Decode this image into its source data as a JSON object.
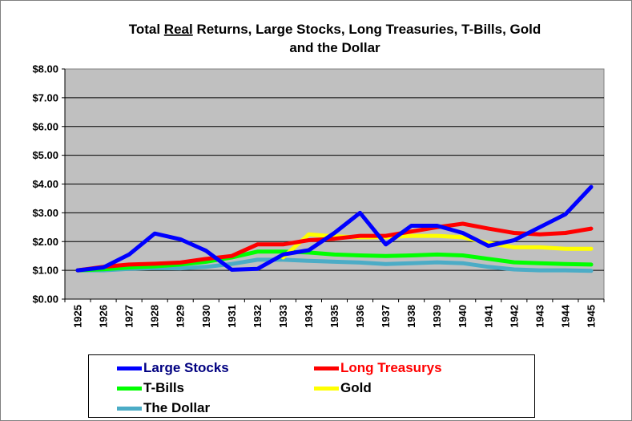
{
  "chart_data": {
    "type": "line",
    "title_parts": [
      "Total ",
      "Real",
      " Returns, Large Stocks, Long Treasuries, T-Bills, Gold"
    ],
    "title_line2": "and the Dollar",
    "xlabel": "",
    "ylabel": "",
    "x": [
      "1925",
      "1926",
      "1927",
      "1928",
      "1929",
      "1930",
      "1931",
      "1932",
      "1933",
      "1934",
      "1935",
      "1936",
      "1937",
      "1938",
      "1939",
      "1940",
      "1941",
      "1942",
      "1943",
      "1944",
      "1945"
    ],
    "ylim": [
      0,
      8
    ],
    "yticks": [
      "$0.00",
      "$1.00",
      "$2.00",
      "$3.00",
      "$4.00",
      "$5.00",
      "$6.00",
      "$7.00",
      "$8.00"
    ],
    "grid": true,
    "plot_background": "#c0c0c0",
    "legend_placement": "bottom",
    "series": [
      {
        "name": "Large Stocks",
        "color": "#0000ff",
        "label_color": "#000080",
        "values": [
          1.0,
          1.1,
          1.55,
          2.28,
          2.08,
          1.68,
          1.02,
          1.05,
          1.55,
          1.7,
          2.3,
          3.0,
          1.9,
          2.55,
          2.55,
          2.3,
          1.85,
          2.05,
          2.5,
          2.95,
          3.9
        ]
      },
      {
        "name": "Long Treasurys",
        "color": "#ff0000",
        "label_color": "#ff0000",
        "values": [
          1.0,
          1.12,
          1.2,
          1.23,
          1.27,
          1.4,
          1.5,
          1.9,
          1.9,
          2.05,
          2.1,
          2.2,
          2.2,
          2.35,
          2.5,
          2.62,
          2.45,
          2.3,
          2.25,
          2.3,
          2.45
        ]
      },
      {
        "name": "T-Bills",
        "color": "#00ff00",
        "label_color": "#000000",
        "values": [
          1.0,
          1.04,
          1.1,
          1.14,
          1.2,
          1.3,
          1.45,
          1.65,
          1.65,
          1.62,
          1.55,
          1.52,
          1.5,
          1.52,
          1.55,
          1.52,
          1.4,
          1.28,
          1.25,
          1.22,
          1.2
        ]
      },
      {
        "name": "Gold",
        "color": "#ffff00",
        "label_color": "#000000",
        "values": [
          null,
          null,
          null,
          null,
          null,
          null,
          null,
          null,
          1.45,
          2.25,
          2.18,
          2.15,
          2.15,
          2.2,
          2.2,
          2.15,
          1.95,
          1.8,
          1.8,
          1.75,
          1.75
        ]
      },
      {
        "name": "The Dollar",
        "color": "#4bacc6",
        "label_color": "#000000",
        "values": [
          1.0,
          1.0,
          1.05,
          1.08,
          1.07,
          1.12,
          1.22,
          1.37,
          1.37,
          1.33,
          1.3,
          1.27,
          1.22,
          1.25,
          1.28,
          1.25,
          1.12,
          1.03,
          1.0,
          1.0,
          0.98
        ]
      }
    ]
  }
}
